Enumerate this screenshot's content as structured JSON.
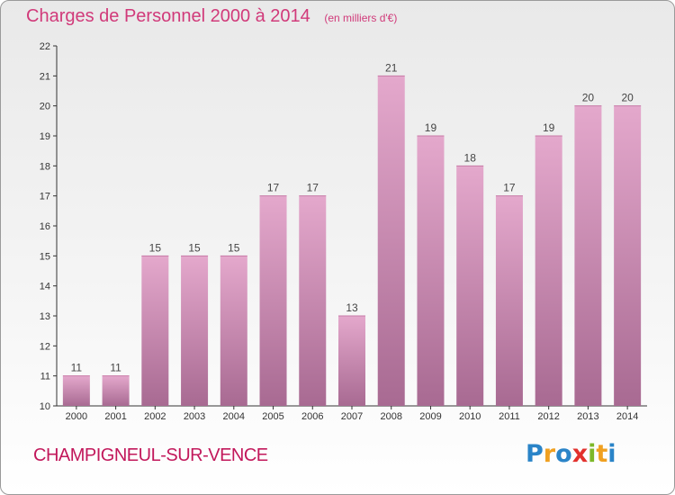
{
  "header": {
    "title": "Charges de Personnel 2000 à 2014",
    "subtitle": "(en milliers d'€)"
  },
  "footer": {
    "place": "CHAMPIGNEUL-SUR-VENCE",
    "logo": [
      "P",
      "r",
      "o",
      "x",
      "i",
      "t",
      "i"
    ],
    "logo_colors": [
      "#2a84c8",
      "#f0a020",
      "#2a84c8",
      "#e2312d",
      "#7db829",
      "#f0a020",
      "#2a84c8"
    ]
  },
  "colors": {
    "bar_top": "#e4a8cc",
    "bar_bottom": "#a86a92",
    "title": "#d13a7a"
  },
  "chart_data": {
    "type": "bar",
    "title": "Charges de Personnel 2000 à 2014",
    "subtitle": "(en milliers d'€)",
    "categories": [
      "2000",
      "2001",
      "2002",
      "2003",
      "2004",
      "2005",
      "2006",
      "2007",
      "2008",
      "2009",
      "2010",
      "2011",
      "2012",
      "2013",
      "2014"
    ],
    "values": [
      11,
      11,
      15,
      15,
      15,
      17,
      17,
      13,
      21,
      19,
      18,
      17,
      19,
      20,
      20
    ],
    "ylim": [
      10,
      22
    ],
    "yticks": [
      10,
      11,
      12,
      13,
      14,
      15,
      16,
      17,
      18,
      19,
      20,
      21,
      22
    ],
    "grid": false,
    "xlabel": "",
    "ylabel": ""
  }
}
